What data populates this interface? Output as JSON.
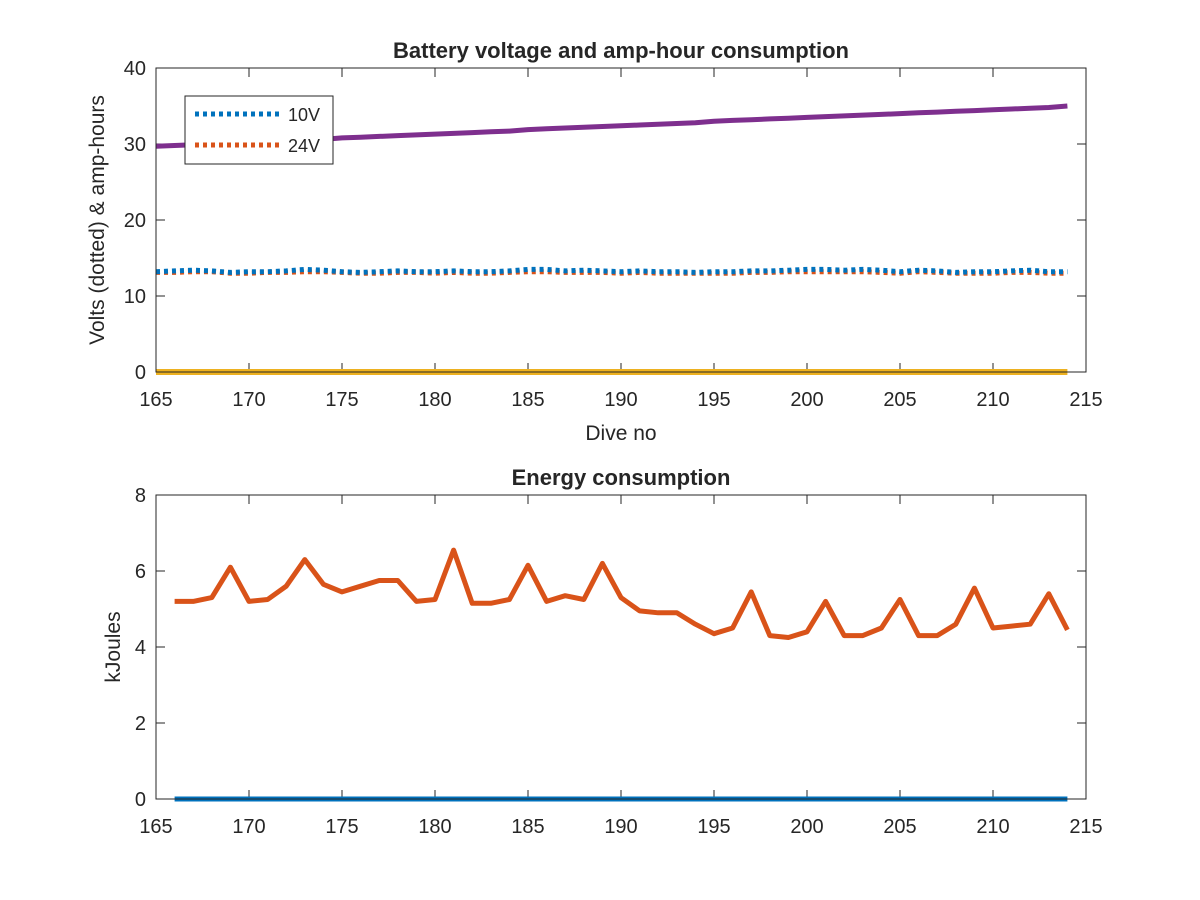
{
  "chart_data": [
    {
      "type": "line",
      "title": "Battery voltage and amp-hour consumption",
      "xlabel": "Dive no",
      "ylabel": "Volts (dotted) & amp-hours",
      "xlim": [
        165,
        215
      ],
      "ylim": [
        0,
        40
      ],
      "xticks": [
        165,
        170,
        175,
        180,
        185,
        190,
        195,
        200,
        205,
        210,
        215
      ],
      "yticks": [
        0,
        10,
        20,
        30,
        40
      ],
      "grid": false,
      "legend": {
        "position": "top-left",
        "entries": [
          "10V",
          "24V"
        ]
      },
      "colors": {
        "s10V": "#0072BD",
        "s24V": "#D95319",
        "ah": "#7E2F8E",
        "zero": "#EDB120",
        "axis": "#262626"
      },
      "x": [
        165,
        166,
        167,
        168,
        169,
        170,
        171,
        172,
        173,
        174,
        175,
        176,
        177,
        178,
        179,
        180,
        181,
        182,
        183,
        184,
        185,
        186,
        187,
        188,
        189,
        190,
        191,
        192,
        193,
        194,
        195,
        196,
        197,
        198,
        199,
        200,
        201,
        202,
        203,
        204,
        205,
        206,
        207,
        208,
        209,
        210,
        211,
        212,
        213,
        214
      ],
      "series": [
        {
          "name": "10V",
          "style": "dotted",
          "values": [
            13.2,
            13.3,
            13.4,
            13.3,
            13.1,
            13.2,
            13.2,
            13.3,
            13.5,
            13.4,
            13.2,
            13.1,
            13.2,
            13.3,
            13.2,
            13.2,
            13.3,
            13.2,
            13.2,
            13.3,
            13.5,
            13.5,
            13.3,
            13.4,
            13.3,
            13.2,
            13.3,
            13.2,
            13.2,
            13.1,
            13.2,
            13.2,
            13.3,
            13.3,
            13.4,
            13.5,
            13.5,
            13.4,
            13.5,
            13.4,
            13.2,
            13.4,
            13.3,
            13.1,
            13.2,
            13.2,
            13.3,
            13.4,
            13.2,
            13.2
          ]
        },
        {
          "name": "24V",
          "style": "dotted",
          "values": [
            13.1,
            13.1,
            13.2,
            13.2,
            13.0,
            13.0,
            13.1,
            13.1,
            13.2,
            13.2,
            13.1,
            13.0,
            13.0,
            13.1,
            13.1,
            13.0,
            13.1,
            13.0,
            13.0,
            13.1,
            13.2,
            13.2,
            13.1,
            13.1,
            13.1,
            13.0,
            13.1,
            13.0,
            13.0,
            13.0,
            13.0,
            13.0,
            13.1,
            13.1,
            13.2,
            13.2,
            13.2,
            13.2,
            13.2,
            13.1,
            13.0,
            13.2,
            13.1,
            13.0,
            13.0,
            13.0,
            13.1,
            13.1,
            13.0,
            13.0
          ]
        },
        {
          "style": "solid",
          "values": [
            29.7,
            29.8,
            29.9,
            30.0,
            30.1,
            30.2,
            30.3,
            30.4,
            30.5,
            30.6,
            30.8,
            30.9,
            31.0,
            31.1,
            31.2,
            31.3,
            31.4,
            31.5,
            31.6,
            31.7,
            31.9,
            32.0,
            32.1,
            32.2,
            32.3,
            32.4,
            32.5,
            32.6,
            32.7,
            32.8,
            33.0,
            33.1,
            33.2,
            33.3,
            33.4,
            33.5,
            33.6,
            33.7,
            33.8,
            33.9,
            34.0,
            34.1,
            34.2,
            34.3,
            34.4,
            34.5,
            34.6,
            34.7,
            34.8,
            35.0
          ]
        },
        {
          "style": "solid",
          "values": [
            0,
            0,
            0,
            0,
            0,
            0,
            0,
            0,
            0,
            0,
            0,
            0,
            0,
            0,
            0,
            0,
            0,
            0,
            0,
            0,
            0,
            0,
            0,
            0,
            0,
            0,
            0,
            0,
            0,
            0,
            0,
            0,
            0,
            0,
            0,
            0,
            0,
            0,
            0,
            0,
            0,
            0,
            0,
            0,
            0,
            0,
            0,
            0,
            0,
            0
          ]
        }
      ]
    },
    {
      "type": "line",
      "title": "Energy consumption",
      "xlabel": "",
      "ylabel": "kJoules",
      "xlim": [
        165,
        215
      ],
      "ylim": [
        0,
        8
      ],
      "xticks": [
        165,
        170,
        175,
        180,
        185,
        190,
        195,
        200,
        205,
        210,
        215
      ],
      "yticks": [
        0,
        2,
        4,
        6,
        8
      ],
      "grid": false,
      "colors": {
        "energy": "#D95319",
        "zero": "#0072BD",
        "axis": "#262626"
      },
      "x": [
        166,
        167,
        168,
        169,
        170,
        171,
        172,
        173,
        174,
        175,
        176,
        177,
        178,
        179,
        180,
        181,
        182,
        183,
        184,
        185,
        186,
        187,
        188,
        189,
        190,
        191,
        192,
        193,
        194,
        195,
        196,
        197,
        198,
        199,
        200,
        201,
        202,
        203,
        204,
        205,
        206,
        207,
        208,
        209,
        210,
        211,
        212,
        213,
        214
      ],
      "series": [
        {
          "style": "solid",
          "values": [
            5.2,
            5.2,
            5.3,
            6.1,
            5.2,
            5.25,
            5.6,
            6.3,
            5.65,
            5.45,
            5.6,
            5.75,
            5.75,
            5.2,
            5.25,
            6.55,
            5.15,
            5.15,
            5.25,
            6.15,
            5.2,
            5.35,
            5.25,
            6.2,
            5.3,
            4.95,
            4.9,
            4.9,
            4.6,
            4.35,
            4.5,
            5.45,
            4.3,
            4.25,
            4.4,
            5.2,
            4.3,
            4.3,
            4.5,
            5.25,
            4.3,
            4.3,
            4.6,
            5.55,
            4.5,
            4.55,
            4.6,
            5.4,
            4.45
          ]
        },
        {
          "style": "solid",
          "values": [
            0,
            0,
            0,
            0,
            0,
            0,
            0,
            0,
            0,
            0,
            0,
            0,
            0,
            0,
            0,
            0,
            0,
            0,
            0,
            0,
            0,
            0,
            0,
            0,
            0,
            0,
            0,
            0,
            0,
            0,
            0,
            0,
            0,
            0,
            0,
            0,
            0,
            0,
            0,
            0,
            0,
            0,
            0,
            0,
            0,
            0,
            0,
            0,
            0
          ]
        }
      ]
    }
  ]
}
